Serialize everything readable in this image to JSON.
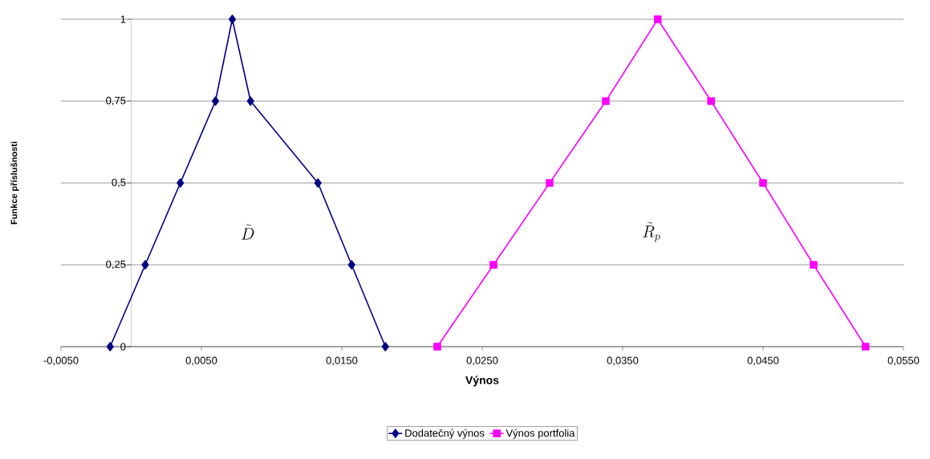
{
  "chart_data": {
    "type": "line",
    "xlabel": "Výnos",
    "ylabel": "Funkce příslušnosti",
    "series": [
      {
        "name": "Dodatečný výnos",
        "color": "#000080",
        "marker": "diamond",
        "x": [
          -0.0015,
          0.001,
          0.0035,
          0.006,
          0.0072,
          0.0085,
          0.0133,
          0.0157,
          0.0181
        ],
        "values": [
          0,
          0.25,
          0.5,
          0.75,
          1,
          0.75,
          0.5,
          0.25,
          0
        ]
      },
      {
        "name": "Výnos portfolia",
        "color": "#ff00ff",
        "marker": "square",
        "x": [
          0.0218,
          0.0258,
          0.0298,
          0.0338,
          0.0375,
          0.0413,
          0.045,
          0.0486,
          0.0523
        ],
        "values": [
          0,
          0.25,
          0.5,
          0.75,
          1,
          0.75,
          0.5,
          0.25,
          0
        ]
      }
    ],
    "xlim": [
      -0.005,
      0.055
    ],
    "ylim": [
      0,
      1
    ],
    "xticks": [
      {
        "value": -0.005,
        "label": "-0,0050"
      },
      {
        "value": 0.005,
        "label": "0,0050"
      },
      {
        "value": 0.015,
        "label": "0,0150"
      },
      {
        "value": 0.025,
        "label": "0,0250"
      },
      {
        "value": 0.035,
        "label": "0,0350"
      },
      {
        "value": 0.045,
        "label": "0,0450"
      },
      {
        "value": 0.055,
        "label": "0,0550"
      }
    ],
    "yticks": [
      0,
      {
        "value": 0.25,
        "label": "0,25"
      },
      {
        "value": 0.5,
        "label": "0,5"
      },
      {
        "value": 0.75,
        "label": "0,75"
      },
      1
    ],
    "grid": "y",
    "legend": "bottom",
    "line_style": "solid",
    "annotations": [
      "\\tilde{D}",
      "\\tilde{R}_p"
    ]
  }
}
